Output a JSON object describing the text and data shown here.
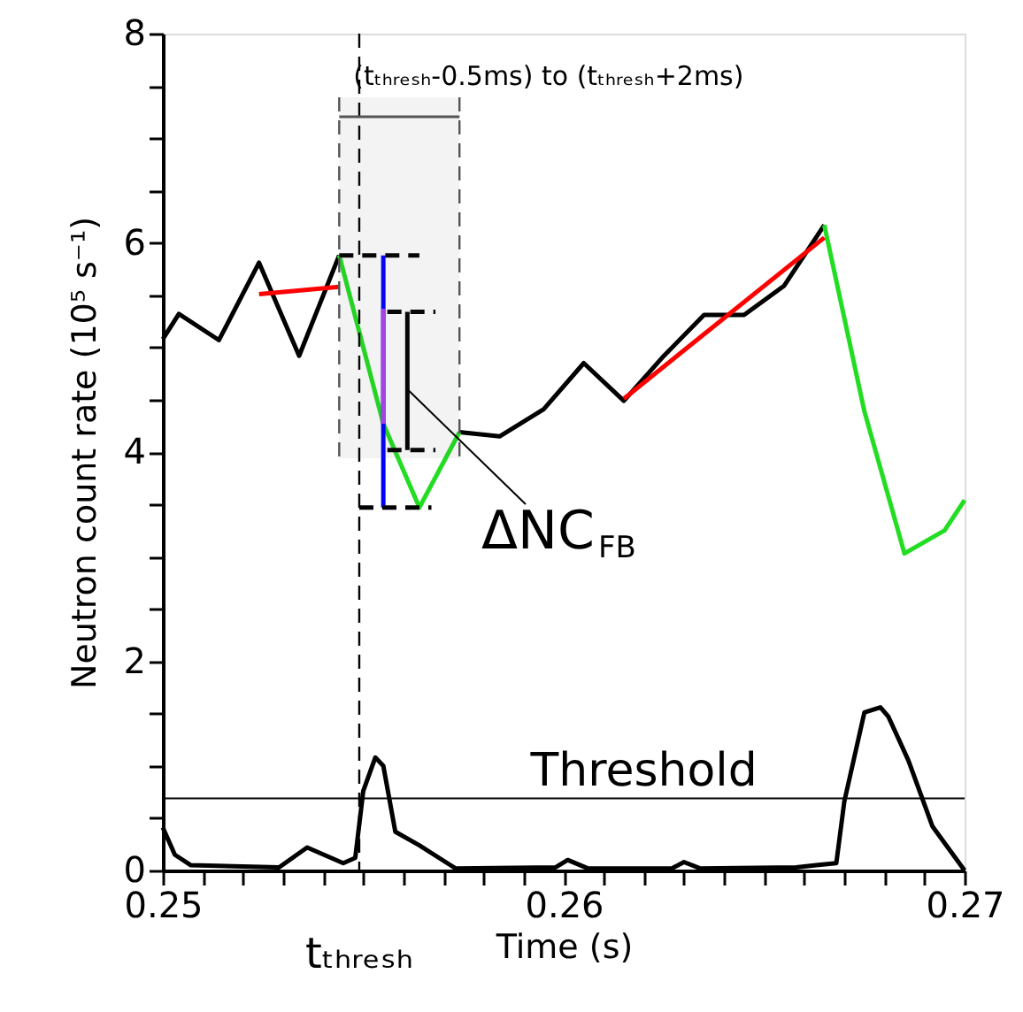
{
  "chart_data": {
    "type": "line",
    "xlabel": "Time (s)",
    "ylabel": "Neutron count rate (10⁵ s⁻¹)",
    "xlim": [
      0.25,
      0.27
    ],
    "ylim": [
      0,
      8
    ],
    "xticks": [
      0.25,
      {
        "value": 0.251,
        "label": null
      },
      {
        "value": 0.252,
        "label": null
      },
      {
        "value": 0.253,
        "label": null
      },
      {
        "value": 0.254,
        "label": null
      },
      {
        "value": 0.255,
        "label": null
      },
      {
        "value": 0.256,
        "label": null
      },
      {
        "value": 0.257,
        "label": null
      },
      {
        "value": 0.258,
        "label": null
      },
      {
        "value": 0.259,
        "label": null
      },
      0.26,
      {
        "value": 0.261,
        "label": null
      },
      {
        "value": 0.262,
        "label": null
      },
      {
        "value": 0.263,
        "label": null
      },
      {
        "value": 0.264,
        "label": null
      },
      {
        "value": 0.265,
        "label": null
      },
      {
        "value": 0.266,
        "label": null
      },
      {
        "value": 0.267,
        "label": null
      },
      {
        "value": 0.268,
        "label": null
      },
      {
        "value": 0.269,
        "label": null
      },
      0.27
    ],
    "yticks": [
      0,
      {
        "value": 0.5,
        "label": null
      },
      {
        "value": 1,
        "label": null
      },
      {
        "value": 1.5,
        "label": null
      },
      2,
      {
        "value": 2.5,
        "label": null
      },
      {
        "value": 3,
        "label": null
      },
      {
        "value": 3.5,
        "label": null
      },
      4,
      {
        "value": 4.5,
        "label": null
      },
      {
        "value": 5,
        "label": null
      },
      {
        "value": 5.5,
        "label": null
      },
      6,
      {
        "value": 6.5,
        "label": null
      },
      {
        "value": 7,
        "label": null
      },
      {
        "value": 7.5,
        "label": null
      },
      8
    ],
    "grid": false,
    "series": [
      {
        "color": "#000000",
        "x": [
          0.25,
          0.2504,
          0.2514,
          0.2524,
          0.2534,
          0.2544,
          0.2559,
          0.2574,
          0.2584,
          0.2595,
          0.2605,
          0.2615,
          0.2625,
          0.2635,
          0.2645,
          0.2655,
          0.2665
        ],
        "values": [
          5.08,
          5.32,
          5.07,
          5.81,
          4.92,
          5.88,
          null,
          4.19,
          4.15,
          4.41,
          4.85,
          4.49,
          4.92,
          5.31,
          5.31,
          5.59,
          6.17
        ]
      },
      {
        "color": "#22dd22",
        "x": [
          0.2544,
          0.2555,
          0.2564,
          0.2574,
          0.262,
          0.2665,
          0.2675,
          0.2685,
          0.2695,
          0.27
        ],
        "values": [
          5.88,
          4.27,
          3.47,
          4.19,
          null,
          6.17,
          4.39,
          3.03,
          3.25,
          3.54
        ]
      },
      {
        "color": "#ff0000",
        "x": [
          0.2524,
          0.2544,
          0.258,
          0.2615,
          0.2665
        ],
        "values": [
          5.51,
          5.58,
          null,
          4.51,
          6.05
        ]
      },
      {
        "color": "#0000ff",
        "x": [
          0.2555,
          0.2555
        ],
        "values": [
          5.88,
          3.47
        ]
      },
      {
        "color": "#aa44ee",
        "x": [
          0.2555,
          0.2555
        ],
        "values": [
          5.37,
          4.27
        ]
      },
      {
        "color": "#000000",
        "x": [
          0.2561,
          0.2561
        ],
        "values": [
          5.34,
          4.02
        ]
      },
      {
        "color": "#000000",
        "line_style": "dashed",
        "x": [
          0.2544,
          0.2564
        ],
        "values": [
          5.88,
          5.88
        ]
      },
      {
        "color": "#000000",
        "line_style": "dashed",
        "x": [
          0.2556,
          0.2568
        ],
        "values": [
          5.34,
          5.34
        ]
      },
      {
        "color": "#000000",
        "line_style": "dashed",
        "x": [
          0.2556,
          0.2568
        ],
        "values": [
          4.02,
          4.02
        ]
      },
      {
        "color": "#000000",
        "line_style": "dashed",
        "x": [
          0.2549,
          0.2567
        ],
        "values": [
          3.47,
          3.47
        ]
      },
      {
        "color": "#000000",
        "x": [
          0.25,
          0.2503,
          0.2507,
          0.2529,
          0.2536,
          0.2545,
          0.2548,
          0.255,
          0.2553,
          0.2555,
          0.2558,
          0.2564,
          0.2573,
          0.2598,
          0.2601,
          0.2606,
          0.2627,
          0.263,
          0.2634,
          0.2658,
          0.2663,
          0.2668,
          0.267,
          0.2675,
          0.2679,
          0.2681,
          0.2686,
          0.2692,
          0.27
        ],
        "values": [
          0.41,
          0.15,
          0.05,
          0.03,
          0.22,
          0.07,
          0.12,
          0.76,
          1.08,
          1.0,
          0.37,
          0.24,
          0.02,
          0.03,
          0.1,
          0.02,
          0.02,
          0.08,
          0.02,
          0.03,
          0.05,
          0.07,
          0.66,
          1.51,
          1.56,
          1.47,
          1.05,
          0.42,
          0.0
        ]
      }
    ],
    "ref_lines": [
      {
        "axis": "y",
        "value": 0.69,
        "label": "Threshold",
        "color": "#000000"
      },
      {
        "axis": "x",
        "value": 0.2549,
        "label": "tₜₕᵣₑₛₕ",
        "line_style": "dashed",
        "color": "#000000"
      }
    ],
    "bands": [
      {
        "axis": "x",
        "from": 0.2544,
        "to": 0.2574,
        "label": "(tₜₕᵣₑₛₕ-0.5ms) to (tₜₕᵣₑₛₕ+2ms)",
        "color": "#555555"
      }
    ],
    "annotations": [
      {
        "text": "ΔNC$_{FB}$",
        "x": 0.2561,
        "y": 4.6
      }
    ]
  }
}
